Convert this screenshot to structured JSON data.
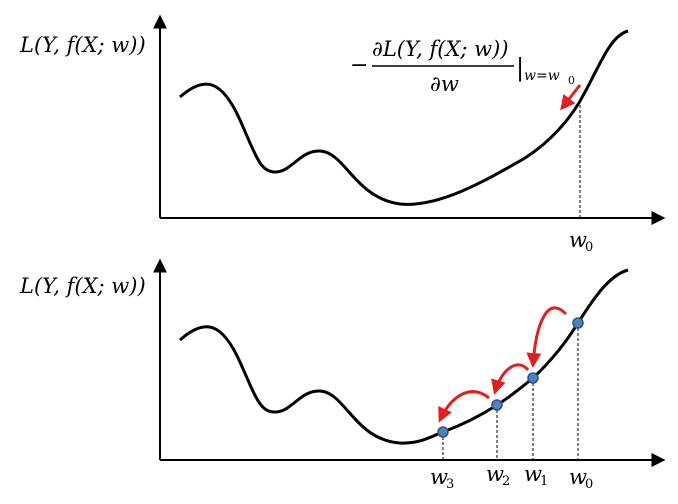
{
  "top_panel": {
    "y_label": "L(Y, f(X; w))",
    "gradient": {
      "sign": "−",
      "numerator": "∂L(Y, f(X; w))",
      "denominator": "∂w",
      "eval_bar": "|",
      "eval_subscript": "w=w",
      "eval_subscript_index": "0"
    },
    "w0": {
      "base": "w",
      "sub": "0"
    }
  },
  "bottom_panel": {
    "y_label": "L(Y, f(X; w))",
    "points": [
      {
        "base": "w",
        "sub": "3"
      },
      {
        "base": "w",
        "sub": "2"
      },
      {
        "base": "w",
        "sub": "1"
      },
      {
        "base": "w",
        "sub": "0"
      }
    ]
  },
  "colors": {
    "curve": "#000000",
    "arrow": "#e02020",
    "point_fill": "#4f81bd",
    "point_stroke": "#2c5288"
  }
}
